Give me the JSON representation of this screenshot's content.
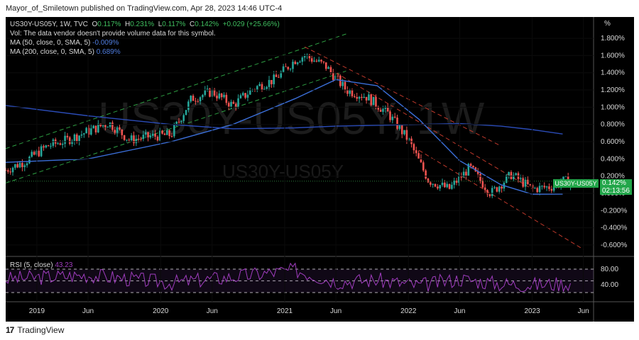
{
  "header": {
    "text": "Mayor_of_Smiletown published on TradingView.com, Apr 28, 2023 14:46 UTC-4"
  },
  "legend": {
    "symbol_line": "US30Y-US05Y, 1W, TVC",
    "o_label": "O",
    "o_value": "0.117%",
    "h_label": "H",
    "h_value": "0.231%",
    "l_label": "L",
    "l_value": "0.117%",
    "c_label": "C",
    "c_value": "0.142%",
    "change": "+0.029 (+25.66%)",
    "vol_line": "Vol: The data vendor doesn't provide volume data for this symbol.",
    "ma50_label": "MA (50, close, 0, SMA, 5)",
    "ma50_value": "-0.009%",
    "ma200_label": "MA (200, close, 0, SMA, 5)",
    "ma200_value": "0.689%"
  },
  "watermark": {
    "big": "US30Y-US05Y, 1W",
    "small": "US30Y-US05Y"
  },
  "price_axis": {
    "unit": "%",
    "ticks": [
      "1.800%",
      "1.600%",
      "1.400%",
      "1.200%",
      "1.000%",
      "0.800%",
      "0.600%",
      "0.400%",
      "0.200%",
      "0.000%",
      "-0.200%",
      "-0.400%",
      "-0.600%"
    ]
  },
  "price_tag": {
    "symbol": "US30Y-US05Y",
    "value": "0.142%",
    "countdown": "02:13:56"
  },
  "rsi": {
    "label": "RSI (5, close)",
    "value": "43.23",
    "ticks": [
      "80.00",
      "40.00"
    ]
  },
  "time_axis": {
    "ticks": [
      "2019",
      "Jun",
      "2020",
      "Jun",
      "2021",
      "Jun",
      "2022",
      "Jun",
      "2023",
      "Jun"
    ]
  },
  "footer": {
    "brand": "TradingView"
  },
  "colors": {
    "background": "#000000",
    "candle_up": "#26a69a",
    "candle_down": "#ef5350",
    "ma50": "#3b6fd9",
    "ma200": "#2b4cb8",
    "rsi_line": "#a03dbf",
    "trend_green": "#2ea043",
    "trend_red": "#c0392b",
    "price_tag": "#22a64a"
  },
  "chart_data": {
    "type": "candlestick",
    "title": "US30Y-US05Y, 1W, TVC",
    "ylim": [
      -0.65,
      1.85
    ],
    "xlabel": "",
    "ylabel": "%",
    "x_range": [
      "2018-10",
      "2023-07"
    ],
    "series": [
      {
        "name": "US30Y-US05Y",
        "x": [
          "2018-10",
          "2018-12",
          "2019-02",
          "2019-04",
          "2019-06",
          "2019-08",
          "2019-10",
          "2019-12",
          "2020-02",
          "2020-04",
          "2020-06",
          "2020-08",
          "2020-10",
          "2020-12",
          "2021-02",
          "2021-03",
          "2021-05",
          "2021-07",
          "2021-09",
          "2021-11",
          "2022-01",
          "2022-03",
          "2022-05",
          "2022-07",
          "2022-09",
          "2022-11",
          "2023-01",
          "2023-03",
          "2023-04"
        ],
        "values": [
          0.27,
          0.38,
          0.55,
          0.62,
          0.72,
          0.82,
          0.62,
          0.66,
          0.68,
          1.1,
          1.18,
          1.02,
          1.22,
          1.32,
          1.55,
          1.6,
          1.48,
          1.2,
          1.12,
          0.93,
          0.62,
          0.15,
          0.05,
          0.3,
          0.0,
          0.22,
          0.05,
          0.08,
          0.142
        ]
      },
      {
        "name": "MA (50, close, 0, SMA, 5)",
        "x": [
          "2018-10",
          "2019-06",
          "2020-02",
          "2020-08",
          "2021-02",
          "2021-06",
          "2021-10",
          "2022-02",
          "2022-06",
          "2022-10",
          "2023-01",
          "2023-04"
        ],
        "values": [
          0.36,
          0.4,
          0.6,
          0.8,
          1.1,
          1.32,
          1.25,
          0.86,
          0.38,
          0.1,
          -0.01,
          -0.009
        ]
      },
      {
        "name": "MA (200, close, 0, SMA, 5)",
        "x": [
          "2018-10",
          "2019-06",
          "2020-02",
          "2020-08",
          "2021-02",
          "2021-06",
          "2021-10",
          "2022-02",
          "2022-06",
          "2022-10",
          "2023-01",
          "2023-04"
        ],
        "values": [
          1.02,
          0.9,
          0.8,
          0.75,
          0.76,
          0.78,
          0.79,
          0.8,
          0.81,
          0.78,
          0.74,
          0.689
        ]
      },
      {
        "name": "RSI (5, close)",
        "x": [
          "2018-10",
          "2019-06",
          "2020-02",
          "2020-08",
          "2021-02",
          "2021-06",
          "2021-10",
          "2022-02",
          "2022-06",
          "2022-10",
          "2023-01",
          "2023-04"
        ],
        "values": [
          55,
          65,
          45,
          60,
          78,
          48,
          52,
          38,
          55,
          42,
          40,
          43.23
        ]
      }
    ]
  }
}
